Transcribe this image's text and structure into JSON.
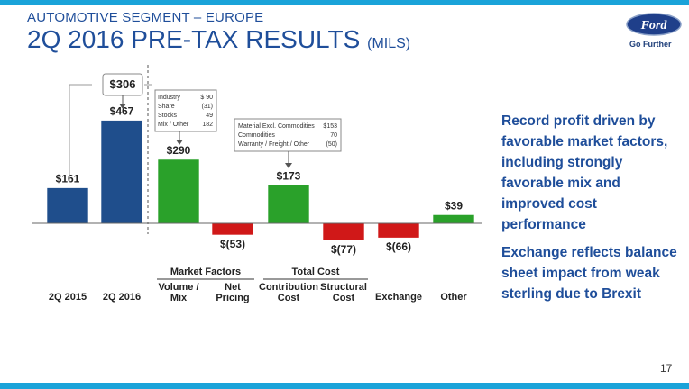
{
  "header": {
    "subtitle": "AUTOMOTIVE SEGMENT – EUROPE",
    "title_main": "2Q 2016 PRE-TAX RESULTS",
    "title_unit": "(MILS)",
    "logo_text": "Ford",
    "tagline": "Go Further"
  },
  "chart_data": {
    "type": "bar",
    "subtype": "waterfall",
    "categories": [
      "2Q 2015",
      "2Q 2016",
      "Volume / Mix",
      "Net Pricing",
      "Contribution Cost",
      "Structural Cost",
      "Exchange",
      "Other"
    ],
    "values": [
      161,
      467,
      290,
      -53,
      173,
      -77,
      -66,
      39
    ],
    "value_labels": [
      "$161",
      "$467",
      "$290",
      "$(53)",
      "$173",
      "$(77)",
      "$(66)",
      "$39"
    ],
    "colors": [
      "#1f4e8c",
      "#1f4e8c",
      "#2aa12a",
      "#d01818",
      "#2aa12a",
      "#d01818",
      "#d01818",
      "#2aa12a"
    ],
    "groups": [
      {
        "label": "Market Factors",
        "categories": [
          "Volume / Mix",
          "Net Pricing"
        ]
      },
      {
        "label": "Total Cost",
        "categories": [
          "Contribution Cost",
          "Structural Cost"
        ]
      }
    ],
    "annotations": {
      "change": "$306",
      "volume_mix_detail": [
        {
          "label": "Industry",
          "value": "$ 90"
        },
        {
          "label": "Share",
          "value": "(31)"
        },
        {
          "label": "Stocks",
          "value": "49"
        },
        {
          "label": "Mix / Other",
          "value": "182"
        }
      ],
      "contribution_cost_detail": [
        {
          "label": "Material Excl. Commodities",
          "value": "$153"
        },
        {
          "label": "Commodities",
          "value": "70"
        },
        {
          "label": "Warranty / Freight / Other",
          "value": "(50)"
        }
      ]
    }
  },
  "commentary": [
    "Record profit driven by favorable market factors, including strongly favorable mix and improved cost performance",
    "Exchange reflects balance sheet impact from weak sterling due to Brexit"
  ],
  "page_number": "17"
}
